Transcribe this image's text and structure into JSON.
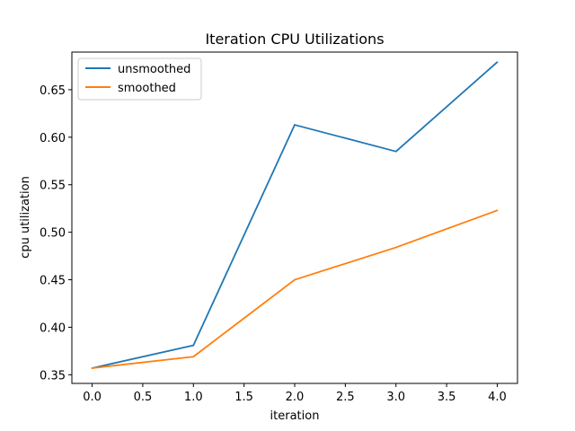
{
  "chart_data": {
    "type": "line",
    "title": "Iteration CPU Utilizations",
    "xlabel": "iteration",
    "ylabel": "cpu utilization",
    "x": [
      0,
      1,
      2,
      3,
      4
    ],
    "series": [
      {
        "name": "unsmoothed",
        "color": "#1f77b4",
        "values": [
          0.357,
          0.381,
          0.613,
          0.585,
          0.679
        ]
      },
      {
        "name": "smoothed",
        "color": "#ff7f0e",
        "values": [
          0.357,
          0.369,
          0.45,
          0.484,
          0.523
        ]
      }
    ],
    "xlim": [
      -0.2,
      4.2
    ],
    "ylim": [
      0.3409,
      0.6896
    ],
    "xticks": [
      0.0,
      0.5,
      1.0,
      1.5,
      2.0,
      2.5,
      3.0,
      3.5,
      4.0
    ],
    "xtick_labels": [
      "0.0",
      "0.5",
      "1.0",
      "1.5",
      "2.0",
      "2.5",
      "3.0",
      "3.5",
      "4.0"
    ],
    "yticks": [
      0.35,
      0.4,
      0.45,
      0.5,
      0.55,
      0.6,
      0.65
    ],
    "ytick_labels": [
      "0.35",
      "0.40",
      "0.45",
      "0.50",
      "0.55",
      "0.60",
      "0.65"
    ],
    "grid": false,
    "legend_position": "top-left"
  }
}
